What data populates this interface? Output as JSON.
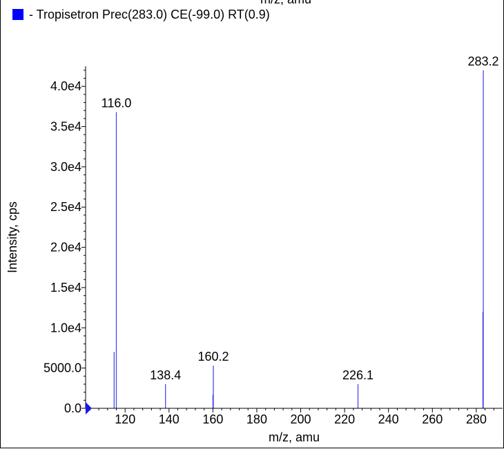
{
  "chart_data": {
    "type": "bar",
    "top_label": "m/z, amu",
    "legend": [
      {
        "name": "- Tropisetron Prec(283.0) CE(-99.0) RT(0.9)",
        "color": "#0000ff"
      }
    ],
    "xlabel": "m/z, amu",
    "ylabel": "Intensity, cps",
    "xlim": [
      102,
      292
    ],
    "ylim": [
      0,
      42500
    ],
    "x_ticks": [
      120,
      140,
      160,
      180,
      200,
      220,
      240,
      260,
      280
    ],
    "y_ticks": [
      {
        "value": 0,
        "label": "0.0"
      },
      {
        "value": 5000,
        "label": "5000.0"
      },
      {
        "value": 10000,
        "label": "1.0e4"
      },
      {
        "value": 15000,
        "label": "1.5e4"
      },
      {
        "value": 20000,
        "label": "2.0e4"
      },
      {
        "value": 25000,
        "label": "2.5e4"
      },
      {
        "value": 30000,
        "label": "3.0e4"
      },
      {
        "value": 35000,
        "label": "3.5e4"
      },
      {
        "value": 40000,
        "label": "4.0e4"
      }
    ],
    "series": [
      {
        "color": "#4a4ae8",
        "peaks": [
          {
            "x": 115.0,
            "y": 7000
          },
          {
            "x": 116.0,
            "y": 36800,
            "label": "116.0"
          },
          {
            "x": 138.4,
            "y": 3000,
            "label": "138.4"
          },
          {
            "x": 160.0,
            "y": 1700
          },
          {
            "x": 160.2,
            "y": 5300,
            "label": "160.2"
          },
          {
            "x": 226.1,
            "y": 3000,
            "label": "226.1"
          },
          {
            "x": 283.0,
            "y": 12000
          },
          {
            "x": 283.2,
            "y": 42000,
            "label": "283.2"
          }
        ]
      }
    ],
    "grid": false,
    "legend_position": "top-left"
  }
}
